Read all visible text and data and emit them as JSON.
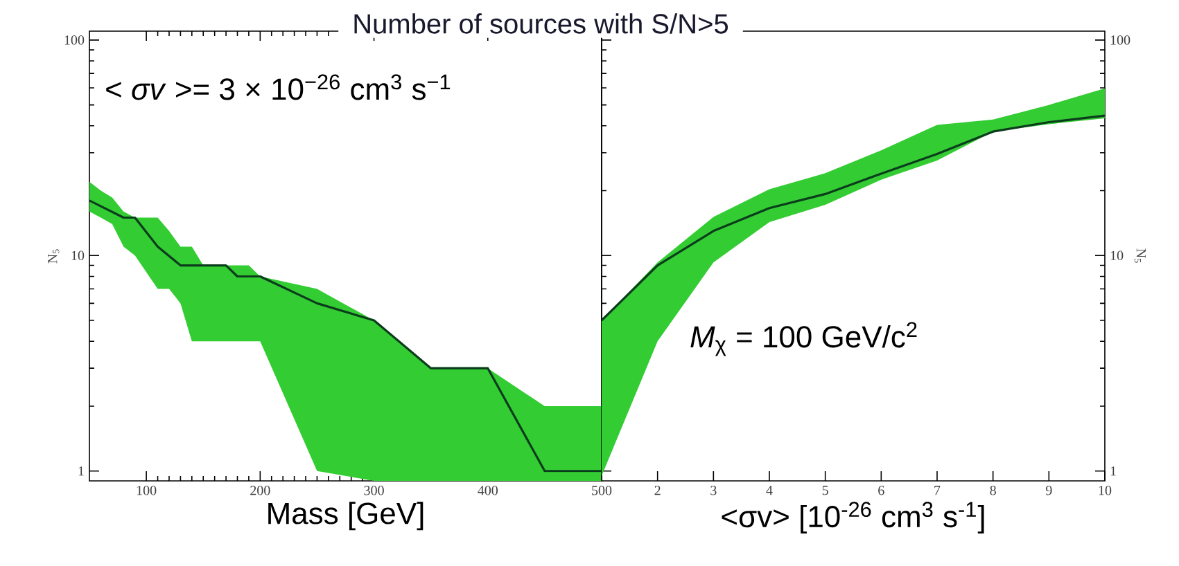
{
  "chart_data": [
    {
      "type": "line",
      "title": "Number of sources with S/N>5",
      "xlabel": "Mass [GeV]",
      "ylabel": "N$_{5}$",
      "annotations": [
        "< *σv* >= 3 × 10$^{−26}$ cm$^{3}$ s$^{−1}$"
      ],
      "x": [
        50,
        60,
        70,
        80,
        90,
        110,
        120,
        130,
        140,
        150,
        170,
        180,
        190,
        200,
        250,
        300,
        350,
        400,
        450,
        500
      ],
      "series": [
        {
          "color": "#0b3d1c",
          "values": [
            18,
            null,
            null,
            15,
            15,
            11,
            null,
            9,
            null,
            null,
            9,
            8,
            null,
            8,
            6,
            5,
            3,
            3,
            1,
            1
          ],
          "lower": [
            16,
            15,
            14,
            11,
            10,
            7,
            7,
            6,
            4,
            4,
            4,
            4,
            4,
            4,
            1,
            0.9,
            0.9,
            0.9,
            0.9,
            0.9
          ],
          "upper": [
            22,
            20,
            18.6,
            16,
            15,
            15,
            13,
            11,
            11,
            9,
            9,
            9,
            9,
            8,
            7,
            5,
            3,
            3,
            2,
            2
          ]
        }
      ],
      "xlim": [
        50,
        500
      ],
      "ylim": [
        0.9,
        110
      ],
      "xticks": [
        100,
        200,
        300,
        400,
        500
      ],
      "yticks": [
        1,
        10,
        100
      ],
      "log": "y"
    },
    {
      "type": "line",
      "xlabel": "<σv> [10$^{-26}$ cm$^{3}$ s$^{-1}$]",
      "ylabel": "N$_{5}$",
      "annotations": [
        "*M*$_{χ}$ = 100 GeV/c$^{2}$"
      ],
      "x": [
        1,
        2,
        3,
        4,
        5,
        6,
        7,
        8,
        9,
        10
      ],
      "series": [
        {
          "color": "#0b3d1c",
          "values": [
            5,
            9,
            13,
            16.6,
            19.3,
            24,
            29.6,
            37.6,
            41.6,
            44.6
          ],
          "lower": [
            0.95,
            4,
            9.3,
            14.3,
            17.2,
            22.5,
            27.6,
            37.6,
            40.7,
            43.3
          ],
          "upper": [
            5,
            9.3,
            15.1,
            20.3,
            24.1,
            30.8,
            40.4,
            42.8,
            50,
            59.7
          ]
        }
      ],
      "xlim": [
        1,
        10
      ],
      "ylim": [
        0.9,
        110
      ],
      "xticks": [
        2,
        3,
        4,
        5,
        6,
        7,
        8,
        9,
        10
      ],
      "yticks": [
        1,
        10,
        100
      ],
      "log": "y"
    }
  ]
}
